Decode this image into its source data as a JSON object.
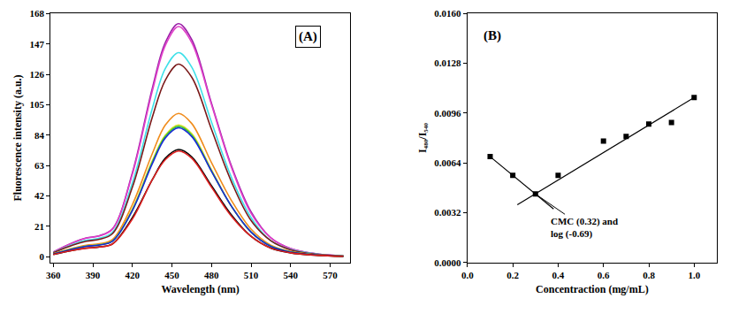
{
  "chart_data": [
    {
      "type": "line",
      "title": "(A)",
      "x_label": "Wavelength (nm)",
      "y_label": "Fluorescence intensity (a.u.)",
      "x": [
        360,
        375,
        385,
        395,
        405,
        420,
        435,
        445,
        455,
        465,
        480,
        495,
        510,
        525,
        540,
        560,
        580
      ],
      "xlim": [
        358,
        585
      ],
      "ylim": [
        -4,
        168
      ],
      "xticks": [
        360,
        390,
        420,
        450,
        480,
        510,
        540,
        570
      ],
      "yticks": [
        0,
        21,
        42,
        63,
        84,
        105,
        126,
        147,
        168
      ],
      "grid": false,
      "series": [
        {
          "color": "#9b1fa8",
          "values": [
            3.2,
            9.7,
            12.9,
            14.5,
            19.3,
            58,
            116,
            148,
            161,
            150,
            106,
            63,
            31,
            13,
            5.6,
            1.9,
            0.5
          ]
        },
        {
          "color": "#e040c8",
          "values": [
            3.2,
            9.5,
            12.7,
            14.3,
            19.1,
            57,
            114,
            146,
            159,
            148,
            105,
            62,
            30,
            13,
            5.6,
            1.9,
            0.5
          ]
        },
        {
          "color": "#3ee0e8",
          "values": [
            2.8,
            8.5,
            11.3,
            12.7,
            16.9,
            51,
            102,
            130,
            141,
            131,
            93,
            55,
            27,
            11,
            4.9,
            1.7,
            0.4
          ]
        },
        {
          "color": "#7a1a1a",
          "values": [
            2.7,
            8,
            10.6,
            12,
            16,
            48,
            96,
            122,
            133,
            124,
            88,
            52,
            25,
            11,
            4.7,
            1.6,
            0.4
          ]
        },
        {
          "color": "#f08c1c",
          "values": [
            2,
            5.9,
            7.9,
            8.9,
            11.9,
            36,
            71,
            91,
            99,
            92,
            65,
            39,
            19,
            7.9,
            3.5,
            1.2,
            0.3
          ]
        },
        {
          "color": "#d8e020",
          "values": [
            1.8,
            5.5,
            7.3,
            8.2,
            10.9,
            33,
            66,
            84,
            91,
            85,
            60,
            35,
            17,
            7.3,
            3.2,
            1.1,
            0.3
          ]
        },
        {
          "color": "#30c040",
          "values": [
            1.8,
            5.4,
            7.2,
            8.1,
            10.8,
            32,
            65,
            83,
            90,
            84,
            59,
            35,
            17,
            7.2,
            3.2,
            1.1,
            0.3
          ]
        },
        {
          "color": "#1a2ad8",
          "values": [
            1.8,
            5.3,
            7.1,
            8,
            10.7,
            32,
            64,
            82,
            89,
            83,
            59,
            35,
            17,
            7.1,
            3.1,
            1.1,
            0.3
          ]
        },
        {
          "color": "#000000",
          "values": [
            1.5,
            4.4,
            5.9,
            6.7,
            8.9,
            27,
            53,
            68,
            74,
            69,
            49,
            29,
            14,
            5.9,
            2.6,
            0.9,
            0.2
          ]
        },
        {
          "color": "#e02020",
          "values": [
            1.5,
            4.4,
            5.8,
            6.6,
            8.8,
            26,
            53,
            67,
            73,
            68,
            48,
            28,
            14,
            5.8,
            2.6,
            0.9,
            0.2
          ]
        }
      ]
    },
    {
      "type": "scatter",
      "title": "(B)",
      "x_label": "Concentraction (mg/mL)",
      "y_label": "I₄₈₀/I₅₄₀",
      "xlim": [
        0,
        1.1
      ],
      "ylim": [
        0,
        0.016
      ],
      "xticks": [
        {
          "value": 0,
          "label": "0.0"
        },
        0.2,
        0.4,
        0.6,
        0.8,
        {
          "value": 1,
          "label": "1.0"
        }
      ],
      "yticks": [
        {
          "value": 0,
          "label": "0.0000"
        },
        {
          "value": 0.0032,
          "label": "0.0032"
        },
        {
          "value": 0.0064,
          "label": "0.0064"
        },
        {
          "value": 0.0096,
          "label": "0.0096"
        },
        {
          "value": 0.0128,
          "label": "0.0128"
        },
        {
          "value": 0.016,
          "label": "0.0160"
        }
      ],
      "grid": false,
      "series": [
        {
          "type": "scatter",
          "marker": "square",
          "color": "#000000",
          "x": [
            0.1,
            0.2,
            0.3,
            0.4,
            0.6,
            0.7,
            0.8,
            0.9,
            1.0
          ],
          "values": [
            0.0068,
            0.0056,
            0.0044,
            0.0056,
            0.0078,
            0.0081,
            0.0089,
            0.009,
            0.0106
          ]
        },
        {
          "type": "line",
          "color": "#000000",
          "x": [
            0.1,
            0.38
          ],
          "values": [
            0.0068,
            0.00344
          ]
        },
        {
          "type": "line",
          "color": "#000000",
          "x": [
            0.22,
            1.0
          ],
          "values": [
            0.0037,
            0.0106
          ]
        }
      ],
      "annotations": [
        {
          "text": "CMC (0.32) and\nlog (-0.69)",
          "x": 0.3,
          "y": 0.0044
        }
      ]
    }
  ]
}
